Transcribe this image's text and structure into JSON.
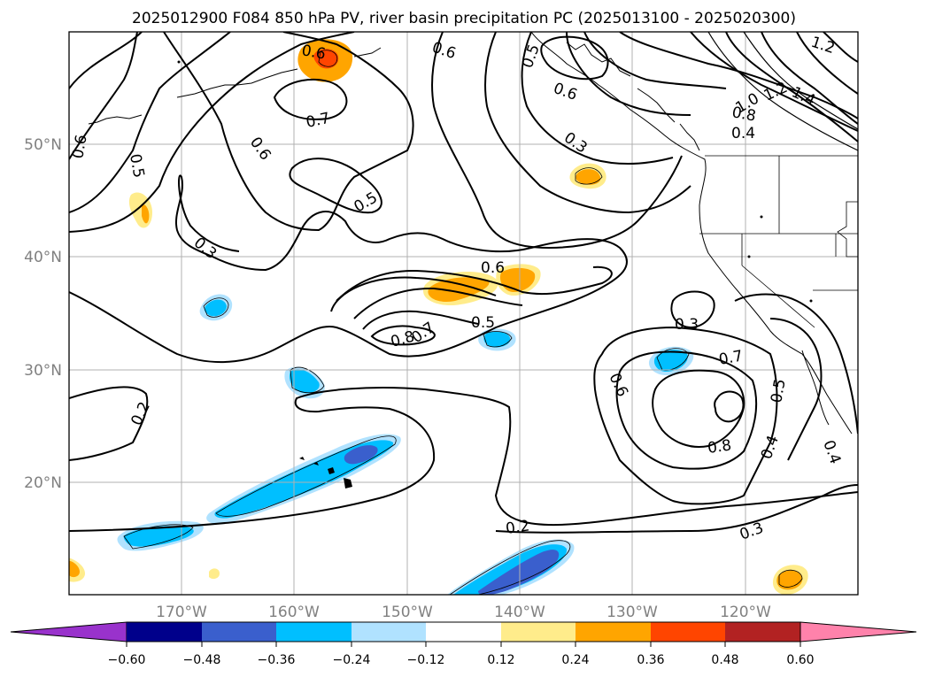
{
  "title": "2025012900 F084 850 hPa PV, river basin precipitation PC (2025013100 - 2025020300)",
  "lon_labels": [
    "170°W",
    "160°W",
    "150°W",
    "140°W",
    "130°W",
    "120°W"
  ],
  "lat_labels": [
    "50°N",
    "40°N",
    "30°N",
    "20°N"
  ],
  "colorbar": {
    "ticks": [
      "−0.60",
      "−0.48",
      "−0.36",
      "−0.24",
      "−0.12",
      "0.12",
      "0.24",
      "0.36",
      "0.48",
      "0.60"
    ],
    "colors": [
      "#9932CC",
      "#00008B",
      "#3A5FCD",
      "#00BFFF",
      "#B0E2FF",
      "#FFFFFF",
      "#FFEC8B",
      "#FFA500",
      "#FF4500",
      "#B22222",
      "#FF82AB"
    ]
  },
  "contour_labels": [
    {
      "text": "0.6"
    },
    {
      "text": "0.5"
    },
    {
      "text": "0.6"
    },
    {
      "text": "1.2"
    },
    {
      "text": "1.0"
    },
    {
      "text": "1.2"
    },
    {
      "text": "1.4"
    },
    {
      "text": "0.8"
    },
    {
      "text": "0.4"
    },
    {
      "text": "0.3"
    },
    {
      "text": "0.6"
    },
    {
      "text": "0.6"
    },
    {
      "text": "0.7"
    },
    {
      "text": "0.5"
    },
    {
      "text": "0.5"
    },
    {
      "text": "0.3"
    },
    {
      "text": "0.6"
    },
    {
      "text": "0.5"
    },
    {
      "text": "0.8"
    },
    {
      "text": "0.7"
    },
    {
      "text": "0.3"
    },
    {
      "text": "0.7"
    },
    {
      "text": "0.6"
    },
    {
      "text": "0.5"
    },
    {
      "text": "0.4"
    },
    {
      "text": "0.8"
    },
    {
      "text": "0.4"
    },
    {
      "text": "0.2"
    },
    {
      "text": "0.2"
    },
    {
      "text": "0.3"
    },
    {
      "text": "0.6"
    }
  ],
  "precip_blobs": [
    {
      "name": "orange-blob-aleutian",
      "color": "#FFA500"
    },
    {
      "name": "red-blob-aleutian",
      "color": "#FF4500"
    },
    {
      "name": "yellow-blob-west",
      "color": "#FFEC8B"
    },
    {
      "name": "orange-blob-west",
      "color": "#FFA500"
    },
    {
      "name": "yellow-blob-bc",
      "color": "#FFEC8B"
    },
    {
      "name": "orange-blob-bc",
      "color": "#FFA500"
    },
    {
      "name": "yellow-blob-center",
      "color": "#FFEC8B"
    },
    {
      "name": "orange-blob-center",
      "color": "#FFA500"
    },
    {
      "name": "yellow-blob-center2",
      "color": "#FFEC8B"
    },
    {
      "name": "orange-blob-center2",
      "color": "#FFA500"
    },
    {
      "name": "lightblue-blob-nw",
      "color": "#B0E2FF"
    },
    {
      "name": "blue-blob-nw",
      "color": "#00BFFF"
    },
    {
      "name": "lightblue-blob-hi-north",
      "color": "#B0E2FF"
    },
    {
      "name": "blue-blob-hi-north",
      "color": "#00BFFF"
    },
    {
      "name": "lightblue-blob-mid",
      "color": "#B0E2FF"
    },
    {
      "name": "blue-blob-mid",
      "color": "#00BFFF"
    },
    {
      "name": "lightblue-blob-east",
      "color": "#B0E2FF"
    },
    {
      "name": "blue-blob-east",
      "color": "#00BFFF"
    },
    {
      "name": "lightblue-band-hawaii",
      "color": "#B0E2FF"
    },
    {
      "name": "blue-band-hawaii",
      "color": "#00BFFF"
    },
    {
      "name": "darkblue-core-hawaii",
      "color": "#3A5FCD"
    },
    {
      "name": "lightblue-blob-sw",
      "color": "#B0E2FF"
    },
    {
      "name": "blue-blob-sw",
      "color": "#00BFFF"
    },
    {
      "name": "lightblue-band-south",
      "color": "#B0E2FF"
    },
    {
      "name": "blue-band-south",
      "color": "#00BFFF"
    },
    {
      "name": "darkblue-core-south",
      "color": "#3A5FCD"
    },
    {
      "name": "yellow-blob-se",
      "color": "#FFEC8B"
    },
    {
      "name": "orange-blob-se",
      "color": "#FFA500"
    },
    {
      "name": "yellow-blob-west-edge",
      "color": "#FFEC8B"
    },
    {
      "name": "orange-blob-west-edge",
      "color": "#FFA500"
    },
    {
      "name": "yellow-dot",
      "color": "#FFEC8B"
    }
  ]
}
